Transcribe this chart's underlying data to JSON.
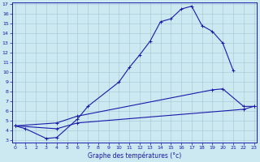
{
  "xlabel": "Graphe des températures (°c)",
  "xlim": [
    -0.3,
    23.3
  ],
  "ylim": [
    2.8,
    17.2
  ],
  "yticks": [
    3,
    4,
    5,
    6,
    7,
    8,
    9,
    10,
    11,
    12,
    13,
    14,
    15,
    16,
    17
  ],
  "xticks": [
    0,
    1,
    2,
    3,
    4,
    5,
    6,
    7,
    8,
    9,
    10,
    11,
    12,
    13,
    14,
    15,
    16,
    17,
    18,
    19,
    20,
    21,
    22,
    23
  ],
  "bg_color": "#cce8f0",
  "grid_color": "#aaccda",
  "line_color": "#1a1aaa",
  "series": [
    {
      "x": [
        0,
        1,
        3,
        4,
        6,
        7,
        10,
        11,
        12,
        13,
        14,
        15,
        16,
        17,
        18,
        19,
        20,
        21
      ],
      "y": [
        4.5,
        4.2,
        3.2,
        3.3,
        5.2,
        6.5,
        9.0,
        10.5,
        11.8,
        13.2,
        15.2,
        15.5,
        16.5,
        16.8,
        14.8,
        14.2,
        13.0,
        10.2
      ]
    },
    {
      "x": [
        0,
        4,
        6,
        19,
        20,
        22,
        23
      ],
      "y": [
        4.5,
        4.8,
        5.5,
        8.2,
        8.3,
        6.5,
        6.5
      ]
    },
    {
      "x": [
        0,
        4,
        6,
        22,
        23
      ],
      "y": [
        4.5,
        4.2,
        4.8,
        6.2,
        6.5
      ]
    }
  ]
}
